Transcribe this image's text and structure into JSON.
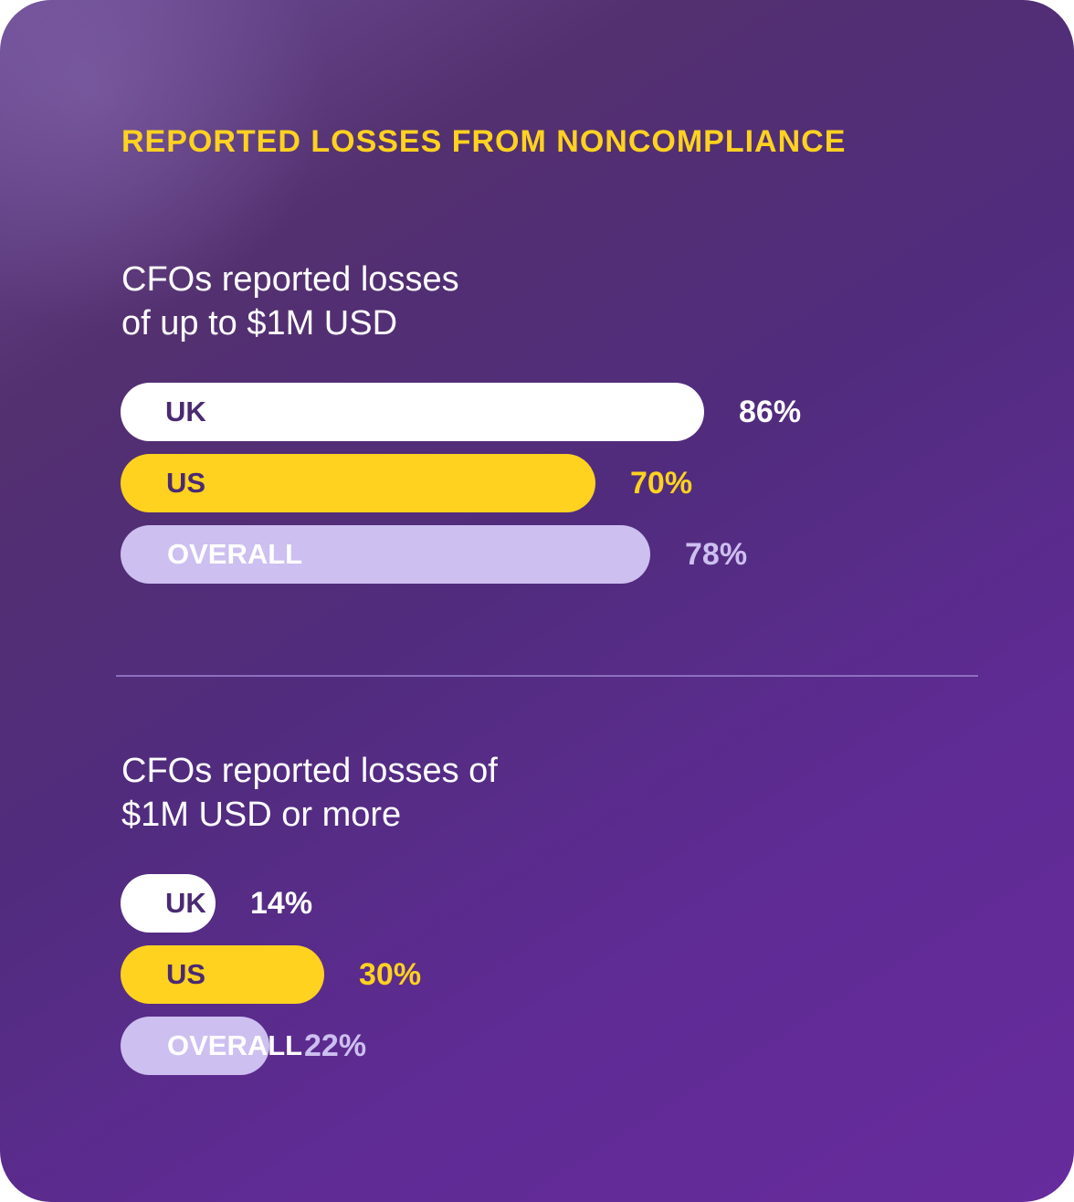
{
  "header": {
    "eyebrow": "REPORTED LOSSES FROM NONCOMPLIANCE"
  },
  "colors": {
    "uk": "#ffffff",
    "us": "#ffd21f",
    "overall": "#cdbff0",
    "uk_label": "#4a2a72",
    "us_label": "#4a2a72",
    "overall_label": "#ffffff",
    "uk_value": "#ffffff",
    "us_value": "#ffd21f",
    "overall_value": "#cdbff0"
  },
  "chart_data": [
    {
      "type": "bar",
      "orientation": "horizontal",
      "title_lines": [
        "CFOs reported losses",
        "of up to $1M USD"
      ],
      "categories": [
        "UK",
        "US",
        "OVERALL"
      ],
      "values": [
        86,
        70,
        78
      ],
      "value_labels": [
        "86%",
        "70%",
        "78%"
      ],
      "unit": "%",
      "xlim": [
        0,
        100
      ]
    },
    {
      "type": "bar",
      "orientation": "horizontal",
      "title_lines": [
        "CFOs reported losses of",
        "$1M USD or more"
      ],
      "categories": [
        "UK",
        "US",
        "OVERALL"
      ],
      "values": [
        14,
        30,
        22
      ],
      "value_labels": [
        "14%",
        "30%",
        "22%"
      ],
      "unit": "%",
      "xlim": [
        0,
        100
      ]
    }
  ]
}
